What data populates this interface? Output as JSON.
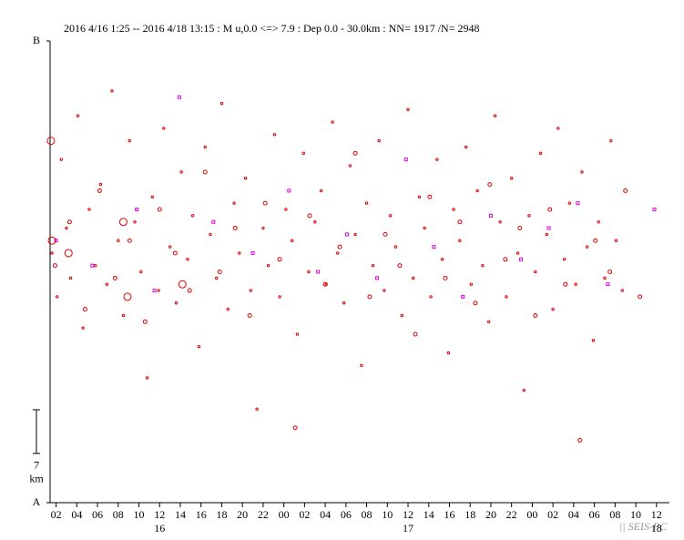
{
  "chart_data": {
    "type": "scatter",
    "title": "2016 4/16 1:25 -- 2016 4/18 13:15  : M u,0.0 <=> 7.9   :  Dep 0.0 - 30.0km :  NN= 1917 /N= 2948",
    "xlim": [
      1.42,
      61.25
    ],
    "xticks": [
      {
        "value": 2,
        "label": "02"
      },
      {
        "value": 4,
        "label": "04"
      },
      {
        "value": 6,
        "label": "06"
      },
      {
        "value": 8,
        "label": "08"
      },
      {
        "value": 10,
        "label": "10"
      },
      {
        "value": 12,
        "label": "12"
      },
      {
        "value": 14,
        "label": "14"
      },
      {
        "value": 16,
        "label": "16"
      },
      {
        "value": 18,
        "label": "18"
      },
      {
        "value": 20,
        "label": "20"
      },
      {
        "value": 22,
        "label": "22"
      },
      {
        "value": 24,
        "label": "00"
      },
      {
        "value": 26,
        "label": "02"
      },
      {
        "value": 28,
        "label": "04"
      },
      {
        "value": 30,
        "label": "06"
      },
      {
        "value": 32,
        "label": "08"
      },
      {
        "value": 34,
        "label": "10"
      },
      {
        "value": 36,
        "label": "12"
      },
      {
        "value": 38,
        "label": "14"
      },
      {
        "value": 40,
        "label": "16"
      },
      {
        "value": 42,
        "label": "18"
      },
      {
        "value": 44,
        "label": "20"
      },
      {
        "value": 46,
        "label": "22"
      },
      {
        "value": 48,
        "label": "00"
      },
      {
        "value": 50,
        "label": "02"
      },
      {
        "value": 52,
        "label": "04"
      },
      {
        "value": 54,
        "label": "06"
      },
      {
        "value": 56,
        "label": "08"
      },
      {
        "value": 58,
        "label": "10"
      },
      {
        "value": 60,
        "label": "12"
      }
    ],
    "day_labels": [
      {
        "value": 12,
        "label": "16"
      },
      {
        "value": 36,
        "label": "17"
      },
      {
        "value": 60,
        "label": "18"
      }
    ],
    "ylim": [
      0,
      74
    ],
    "yticks": [
      {
        "value": 0,
        "label": "A"
      },
      {
        "value": 74,
        "label": "B"
      }
    ],
    "scale_bar": {
      "value": 7,
      "unit": "km"
    },
    "credit": "|| SEIS-PC",
    "series": [
      {
        "color": "#dd0000",
        "marker": "dot",
        "x": [
          1.6,
          2.1,
          2.5,
          3.0,
          3.4,
          4.1,
          4.6,
          5.2,
          5.8,
          6.3,
          6.9,
          7.4,
          8.0,
          8.5,
          9.1,
          9.6,
          10.2,
          10.8,
          11.3,
          11.9,
          12.4,
          13.0,
          13.6,
          14.1,
          14.7,
          15.2,
          15.8,
          16.4,
          16.9,
          17.5,
          18.0,
          18.6,
          19.2,
          19.7,
          20.3,
          20.8,
          21.4,
          22.0,
          22.5,
          23.1,
          23.6,
          24.2,
          24.8,
          25.3,
          25.9,
          26.4,
          27.0,
          27.6,
          28.1,
          28.7,
          29.2,
          29.8,
          30.4,
          30.9,
          31.5,
          32.0,
          32.6,
          33.2,
          33.7,
          34.3,
          34.8,
          35.4,
          36.0,
          36.5,
          37.1,
          37.6,
          38.2,
          38.8,
          39.3,
          39.9,
          40.4,
          41.0,
          41.6,
          42.1,
          42.7,
          43.2,
          43.8,
          44.4,
          44.9,
          45.5,
          46.0,
          46.6,
          47.2,
          47.7,
          48.3,
          48.8,
          49.4,
          50.0,
          50.5,
          51.1,
          51.6,
          52.2,
          52.8,
          53.3,
          53.9,
          54.4,
          55.0,
          55.6,
          56.1,
          56.7
        ],
        "values": [
          40,
          33,
          55,
          44,
          36,
          62,
          28,
          47,
          38,
          51,
          35,
          66,
          42,
          30,
          58,
          45,
          37,
          20,
          49,
          34,
          60,
          41,
          32,
          53,
          39,
          46,
          25,
          57,
          43,
          36,
          64,
          31,
          48,
          40,
          52,
          34,
          15,
          44,
          38,
          59,
          33,
          47,
          42,
          27,
          56,
          37,
          45,
          50,
          35,
          61,
          40,
          32,
          54,
          43,
          22,
          48,
          38,
          58,
          34,
          46,
          41,
          30,
          63,
          36,
          49,
          44,
          33,
          55,
          39,
          24,
          47,
          42,
          57,
          35,
          50,
          38,
          29,
          62,
          45,
          33,
          52,
          40,
          18,
          46,
          37,
          56,
          43,
          31,
          60,
          39,
          48,
          35,
          53,
          41,
          26,
          45,
          36,
          58,
          42,
          34
        ]
      },
      {
        "color": "#dd0000",
        "marker": "circle",
        "x": [
          1.9,
          3.3,
          4.8,
          6.2,
          7.7,
          9.1,
          10.6,
          12.0,
          13.5,
          14.9,
          16.4,
          17.8,
          19.3,
          20.7,
          22.2,
          23.6,
          25.1,
          26.5,
          28.0,
          29.4,
          30.9,
          32.3,
          33.8,
          35.2,
          36.7,
          38.1,
          39.6,
          41.0,
          42.5,
          43.9,
          45.4,
          46.8,
          48.3,
          49.7,
          51.2,
          52.6,
          54.1,
          55.5,
          57.0,
          58.4
        ],
        "values": [
          38,
          45,
          31,
          50,
          36,
          42,
          29,
          47,
          40,
          34,
          53,
          37,
          44,
          30,
          48,
          39,
          12,
          46,
          35,
          41,
          56,
          33,
          43,
          38,
          27,
          49,
          36,
          45,
          32,
          51,
          39,
          44,
          30,
          47,
          35,
          10,
          42,
          37,
          50,
          33
        ]
      },
      {
        "color": "#dd00dd",
        "marker": "square",
        "x": [
          2.0,
          5.5,
          9.8,
          11.5,
          13.9,
          17.2,
          21.0,
          24.5,
          27.3,
          30.1,
          33.0,
          35.8,
          38.5,
          41.3,
          44.0,
          46.9,
          49.6,
          52.4,
          55.3,
          59.8
        ],
        "values": [
          42,
          38,
          47,
          34,
          65,
          45,
          40,
          50,
          37,
          43,
          36,
          55,
          41,
          33,
          46,
          39,
          44,
          48,
          35,
          47
        ]
      },
      {
        "color": "#dd0000",
        "marker": "large",
        "x": [
          1.5,
          1.6,
          8.5,
          8.9,
          14.2,
          3.2
        ],
        "values": [
          58,
          42,
          45,
          33,
          35,
          40
        ]
      }
    ]
  }
}
